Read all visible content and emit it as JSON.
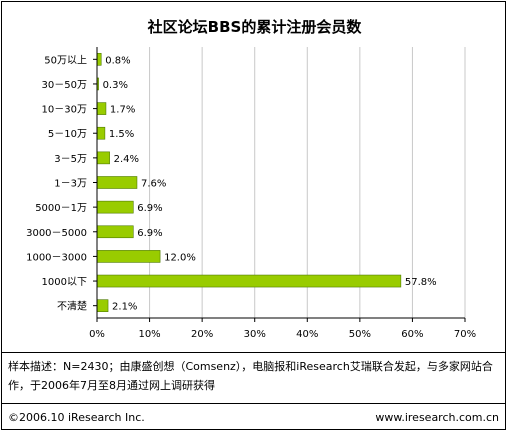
{
  "chart_data": {
    "type": "bar",
    "orientation": "horizontal",
    "title": "社区论坛BBS的累计注册会员数",
    "categories": [
      "50万以上",
      "30－50万",
      "10－30万",
      "5－10万",
      "3－5万",
      "1－3万",
      "5000－1万",
      "3000－5000",
      "1000－3000",
      "1000以下",
      "不清楚"
    ],
    "values": [
      0.8,
      0.3,
      1.7,
      1.5,
      2.4,
      7.6,
      6.9,
      6.9,
      12.0,
      57.8,
      2.1
    ],
    "value_labels": [
      "0.8%",
      "0.3%",
      "1.7%",
      "1.5%",
      "2.4%",
      "7.6%",
      "6.9%",
      "6.9%",
      "12.0%",
      "57.8%",
      "2.1%"
    ],
    "xlim": [
      0,
      70
    ],
    "x_ticks": [
      0,
      10,
      20,
      30,
      40,
      50,
      60,
      70
    ],
    "x_tick_labels": [
      "0%",
      "10%",
      "20%",
      "30%",
      "40%",
      "50%",
      "60%",
      "70%"
    ],
    "grid": true,
    "bar_color": "#99cc00",
    "bar_edge_color": "#4d7a00"
  },
  "note": "样本描述：N=2430；由康盛创想（Comsenz），电脑报和iResearch艾瑞联合发起，与多家网站合作，于2006年7月至8月通过网上调研获得",
  "footer": {
    "copyright": "©2006.10 iResearch Inc.",
    "website": "www.iresearch.com.cn"
  }
}
